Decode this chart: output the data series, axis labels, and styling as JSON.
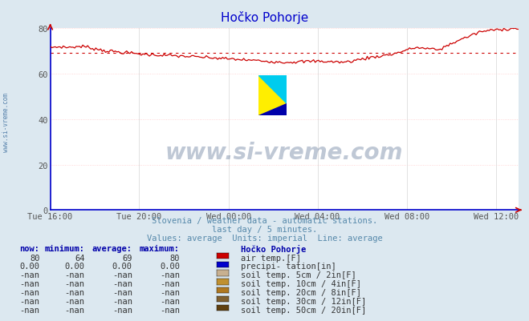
{
  "title": "Hočko Pohorje",
  "background_color": "#dce8f0",
  "plot_bg_color": "#ffffff",
  "x_labels": [
    "Tue 16:00",
    "Tue 20:00",
    "Wed 00:00",
    "Wed 04:00",
    "Wed 08:00",
    "Wed 12:00"
  ],
  "x_ticks_frac": [
    0.0,
    0.19,
    0.381,
    0.571,
    0.762,
    0.952
  ],
  "ylim": [
    0,
    80
  ],
  "yticks": [
    0,
    20,
    40,
    60,
    80
  ],
  "line_color": "#cc0000",
  "avg_value": 69,
  "watermark_text": "www.si-vreme.com",
  "watermark_color": "#1a3a6b",
  "watermark_alpha": 0.28,
  "subtitle1": "Slovenia / weather data - automatic stations.",
  "subtitle2": "last day / 5 minutes.",
  "subtitle3": "Values: average  Units: imperial  Line: average",
  "subtitle_color": "#5588aa",
  "legend_title": "Hočko Pohorje",
  "legend_rows": [
    {
      "label": "air temp.[F]",
      "color": "#cc0000",
      "now": "80",
      "min": "64",
      "avg": "69",
      "max": "80"
    },
    {
      "label": "precipi- tation[in]",
      "color": "#0000cc",
      "now": "0.00",
      "min": "0.00",
      "avg": "0.00",
      "max": "0.00"
    },
    {
      "label": "soil temp. 5cm / 2in[F]",
      "color": "#c8b090",
      "now": "-nan",
      "min": "-nan",
      "avg": "-nan",
      "max": "-nan"
    },
    {
      "label": "soil temp. 10cm / 4in[F]",
      "color": "#c09030",
      "now": "-nan",
      "min": "-nan",
      "avg": "-nan",
      "max": "-nan"
    },
    {
      "label": "soil temp. 20cm / 8in[F]",
      "color": "#b07820",
      "now": "-nan",
      "min": "-nan",
      "avg": "-nan",
      "max": "-nan"
    },
    {
      "label": "soil temp. 30cm / 12in[F]",
      "color": "#806030",
      "now": "-nan",
      "min": "-nan",
      "avg": "-nan",
      "max": "-nan"
    },
    {
      "label": "soil temp. 50cm / 20in[F]",
      "color": "#604010",
      "now": "-nan",
      "min": "-nan",
      "avg": "-nan",
      "max": "-nan"
    }
  ],
  "left_label": "www.si-vreme.com",
  "left_label_color": "#336699",
  "axis_color": "#0000cc",
  "arrow_color": "#cc0000",
  "tick_color": "#555555",
  "hgrid_color": "#ffcccc",
  "vgrid_color": "#dddddd"
}
